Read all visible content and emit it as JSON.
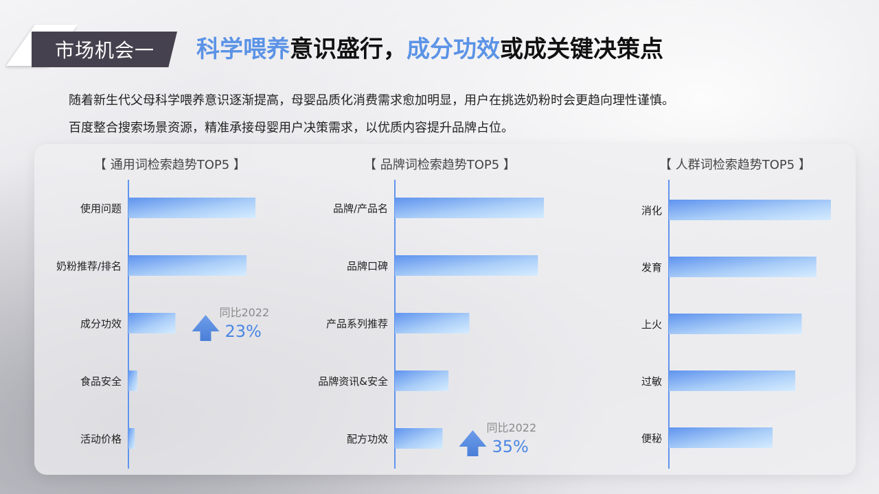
{
  "header": {
    "tag": "市场机会一",
    "headline_parts": [
      {
        "text": "科学喂养",
        "highlight": true
      },
      {
        "text": "意识盛行，",
        "highlight": false
      },
      {
        "text": "成分功效",
        "highlight": true
      },
      {
        "text": "或成关键决策点",
        "highlight": false
      }
    ],
    "highlight_color": "#5b93e6"
  },
  "description": [
    "随着新生代父母科学喂养意识逐渐提高，母婴品质化消费需求愈加明显，用户在挑选奶粉时会更趋向理性谨慎。",
    "百度整合搜索场景资源，精准承接母婴用户决策需求，以优质内容提升品牌占位。"
  ],
  "chart_data": [
    {
      "type": "bar",
      "orientation": "horizontal",
      "title": "【 通用词检索趋势TOP5 】",
      "categories": [
        "使用问题",
        "奶粉推荐/排名",
        "成分功效",
        "食品安全",
        "活动价格"
      ],
      "values": [
        100,
        93,
        37,
        7,
        5
      ],
      "annotation": {
        "category": "成分功效",
        "label": "同比2022",
        "value": "23%",
        "icon": "up-arrow-icon"
      }
    },
    {
      "type": "bar",
      "orientation": "horizontal",
      "title": "【 品牌词检索趋势TOP5 】",
      "categories": [
        "品牌/产品名",
        "品牌口碑",
        "产品系列推荐",
        "品牌资讯&安全",
        "配方功效"
      ],
      "values": [
        100,
        96,
        50,
        36,
        32
      ],
      "annotation": {
        "category": "配方功效",
        "label": "同比2022",
        "value": "35%",
        "icon": "up-arrow-icon"
      }
    },
    {
      "type": "bar",
      "orientation": "horizontal",
      "title": "【 人群词检索趋势TOP5 】",
      "categories": [
        "消化",
        "发育",
        "上火",
        "过敏",
        "便秘"
      ],
      "values": [
        100,
        91,
        82,
        78,
        64
      ],
      "annotation": null
    }
  ],
  "colors": {
    "bar_start": "#5f93ee",
    "bar_end": "#d6ecff",
    "annotation_text": "#7ea7e8",
    "annotation_value": "#4a86e3",
    "axis": "#5f93ee"
  }
}
